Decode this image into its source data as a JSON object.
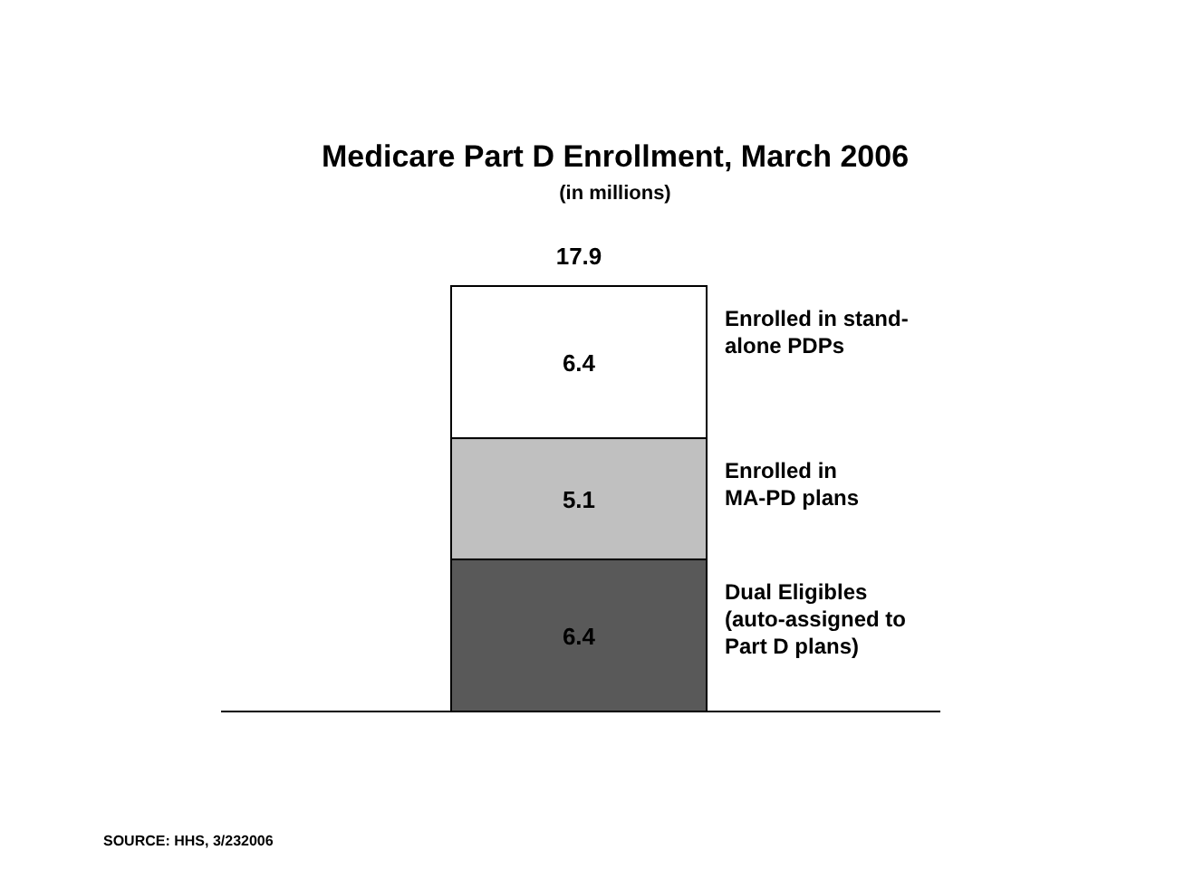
{
  "chart_data": {
    "type": "bar",
    "title": "Medicare Part D Enrollment, March 2006",
    "subtitle": "(in millions)",
    "categories": [
      null
    ],
    "stacked": true,
    "data_labels": true,
    "totals": [
      "17.9"
    ],
    "series": [
      {
        "name": "Dual Eligibles\n(auto-assigned to\nPart D plans)",
        "color": "#595959",
        "values": [
          6.4
        ]
      },
      {
        "name": "Enrolled in\nMA-PD plans",
        "color": "#c0c0c0",
        "values": [
          5.1
        ]
      },
      {
        "name": "Enrolled in stand-\nalone PDPs",
        "color": "#ffffff",
        "values": [
          6.4
        ]
      }
    ],
    "annotations": [
      "SOURCE: HHS, 3/232006"
    ]
  }
}
